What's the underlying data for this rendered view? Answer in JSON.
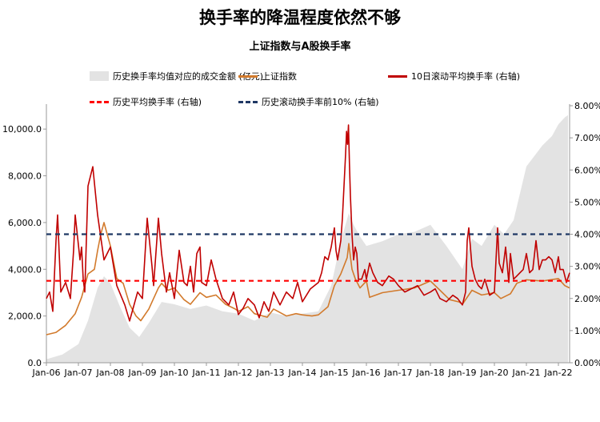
{
  "title": "换手率的降温程度依然不够",
  "colors": {
    "area": "#e3e3e3",
    "index": "#d27a2c",
    "turnover": "#c00000",
    "avg": "#ff0000",
    "p10": "#1f3864"
  },
  "chart_data": {
    "type": "line",
    "title": "上证指数与A股换手率",
    "x_tick_labels": [
      "Jan-06",
      "Jan-07",
      "Jan-08",
      "Jan-09",
      "Jan-10",
      "Jan-11",
      "Jan-12",
      "Jan-13",
      "Jan-14",
      "Jan-15",
      "Jan-16",
      "Jan-17",
      "Jan-18",
      "Jan-19",
      "Jan-20",
      "Jan-21",
      "Jan-22"
    ],
    "x_range": [
      2006.0,
      2022.35
    ],
    "y_left": {
      "range": [
        0,
        11000
      ],
      "ticks": [
        0,
        2000,
        4000,
        6000,
        8000,
        10000
      ],
      "tick_labels": [
        "0.0",
        "2,000.0",
        "4,000.0",
        "6,000.0",
        "8,000.0",
        "10,000.0"
      ]
    },
    "y_right": {
      "range": [
        0,
        8
      ],
      "ticks": [
        0,
        1,
        2,
        3,
        4,
        5,
        6,
        7,
        8
      ],
      "tick_labels": [
        "0.00%",
        "1.00%",
        "2.00%",
        "3.00%",
        "4.00%",
        "5.00%",
        "6.00%",
        "7.00%",
        "8.00%"
      ]
    },
    "legend": {
      "area": "历史换手率均值对应的成交金额 (亿元)",
      "index": "上证指数",
      "turnover": "10日滚动平均换手率 (右轴)",
      "avg": "历史平均换手率 (右轴)",
      "p10": "历史滚动换手率前10% (右轴)"
    },
    "series": [
      {
        "name": "历史换手率均值对应的成交金额 (亿元)",
        "axis": "left",
        "kind": "area",
        "x": [
          2006.0,
          2006.5,
          2007.0,
          2007.3,
          2007.6,
          2007.8,
          2008.0,
          2008.3,
          2008.6,
          2008.9,
          2009.2,
          2009.6,
          2010.0,
          2010.5,
          2011.0,
          2011.5,
          2012.0,
          2012.5,
          2013.0,
          2013.5,
          2014.0,
          2014.5,
          2014.9,
          2015.2,
          2015.45,
          2015.6,
          2015.8,
          2016.0,
          2016.5,
          2017.0,
          2017.5,
          2018.0,
          2018.5,
          2019.0,
          2019.3,
          2019.6,
          2020.0,
          2020.3,
          2020.6,
          2021.0,
          2021.5,
          2021.8,
          2022.0,
          2022.2,
          2022.3
        ],
        "values": [
          150,
          350,
          800,
          1800,
          3200,
          3700,
          3400,
          2400,
          1500,
          1100,
          1700,
          2600,
          2500,
          2300,
          2450,
          2200,
          2100,
          1800,
          2150,
          2000,
          2100,
          2200,
          3300,
          5200,
          6400,
          5900,
          5400,
          5000,
          5200,
          5500,
          5600,
          5900,
          5000,
          4000,
          5300,
          5000,
          5900,
          5500,
          6100,
          8400,
          9300,
          9700,
          10200,
          10500,
          10600
        ]
      },
      {
        "name": "上证指数",
        "axis": "left",
        "kind": "line",
        "x": [
          2006.0,
          2006.3,
          2006.6,
          2006.9,
          2007.1,
          2007.3,
          2007.5,
          2007.6,
          2007.7,
          2007.8,
          2008.0,
          2008.2,
          2008.4,
          2008.6,
          2008.8,
          2008.95,
          2009.2,
          2009.5,
          2009.6,
          2009.8,
          2010.0,
          2010.3,
          2010.5,
          2010.8,
          2010.9,
          2011.0,
          2011.3,
          2011.6,
          2011.9,
          2012.0,
          2012.3,
          2012.5,
          2012.9,
          2013.1,
          2013.5,
          2013.8,
          2014.0,
          2014.3,
          2014.5,
          2014.8,
          2015.0,
          2015.2,
          2015.4,
          2015.45,
          2015.55,
          2015.65,
          2015.8,
          2016.0,
          2016.1,
          2016.5,
          2017.0,
          2017.5,
          2018.0,
          2018.3,
          2018.6,
          2018.9,
          2019.0,
          2019.3,
          2019.6,
          2020.0,
          2020.2,
          2020.5,
          2020.7,
          2021.0,
          2021.5,
          2022.0,
          2022.2,
          2022.35
        ],
        "values": [
          1200,
          1300,
          1600,
          2100,
          2800,
          3800,
          4000,
          4800,
          5500,
          6000,
          5000,
          3600,
          3400,
          2500,
          2000,
          1800,
          2300,
          3200,
          3400,
          3100,
          3200,
          2700,
          2500,
          3000,
          2900,
          2800,
          2900,
          2500,
          2300,
          2200,
          2400,
          2100,
          1950,
          2300,
          2000,
          2100,
          2050,
          2000,
          2050,
          2400,
          3300,
          3800,
          4500,
          5100,
          4000,
          3600,
          3200,
          3500,
          2800,
          3000,
          3100,
          3200,
          3500,
          3100,
          2700,
          2600,
          2500,
          3100,
          2900,
          3000,
          2750,
          2950,
          3400,
          3550,
          3500,
          3600,
          3300,
          3200
        ]
      },
      {
        "name": "10日滚动平均换手率 (右轴)",
        "axis": "right",
        "kind": "line",
        "x": [
          2006.0,
          2006.1,
          2006.2,
          2006.3,
          2006.35,
          2006.45,
          2006.6,
          2006.75,
          2006.85,
          2006.9,
          2007.05,
          2007.1,
          2007.15,
          2007.2,
          2007.3,
          2007.45,
          2007.6,
          2007.8,
          2008.0,
          2008.2,
          2008.45,
          2008.6,
          2008.85,
          2009.0,
          2009.15,
          2009.3,
          2009.35,
          2009.5,
          2009.6,
          2009.75,
          2009.85,
          2010.0,
          2010.15,
          2010.3,
          2010.4,
          2010.5,
          2010.6,
          2010.7,
          2010.8,
          2010.85,
          2011.0,
          2011.15,
          2011.3,
          2011.5,
          2011.7,
          2011.85,
          2012.0,
          2012.15,
          2012.3,
          2012.5,
          2012.65,
          2012.8,
          2012.95,
          2013.1,
          2013.3,
          2013.5,
          2013.7,
          2013.85,
          2014.0,
          2014.25,
          2014.5,
          2014.6,
          2014.7,
          2014.8,
          2014.9,
          2015.0,
          2015.05,
          2015.1,
          2015.2,
          2015.25,
          2015.3,
          2015.35,
          2015.38,
          2015.41,
          2015.44,
          2015.47,
          2015.5,
          2015.55,
          2015.6,
          2015.65,
          2015.7,
          2015.75,
          2015.85,
          2015.95,
          2016.0,
          2016.1,
          2016.2,
          2016.35,
          2016.5,
          2016.7,
          2016.85,
          2017.0,
          2017.2,
          2017.4,
          2017.6,
          2017.8,
          2018.0,
          2018.15,
          2018.3,
          2018.5,
          2018.7,
          2018.85,
          2019.0,
          2019.1,
          2019.15,
          2019.2,
          2019.3,
          2019.4,
          2019.5,
          2019.6,
          2019.7,
          2019.85,
          2020.0,
          2020.1,
          2020.15,
          2020.25,
          2020.35,
          2020.45,
          2020.5,
          2020.6,
          2020.7,
          2020.8,
          2020.9,
          2021.0,
          2021.1,
          2021.2,
          2021.3,
          2021.4,
          2021.5,
          2021.6,
          2021.7,
          2021.8,
          2021.9,
          2022.0,
          2022.05,
          2022.15,
          2022.25,
          2022.35
        ],
        "values": [
          2.0,
          2.2,
          1.6,
          3.8,
          4.6,
          2.2,
          2.5,
          2.0,
          3.5,
          4.6,
          3.2,
          3.6,
          2.6,
          2.2,
          5.5,
          6.1,
          4.6,
          3.2,
          3.6,
          2.4,
          1.8,
          1.3,
          2.2,
          2.0,
          4.5,
          3.0,
          2.4,
          4.5,
          3.4,
          2.2,
          2.8,
          2.0,
          3.5,
          2.5,
          2.4,
          3.0,
          2.2,
          3.4,
          3.6,
          2.5,
          2.4,
          3.2,
          2.6,
          2.0,
          1.8,
          2.2,
          1.5,
          1.7,
          2.0,
          1.8,
          1.4,
          1.9,
          1.6,
          2.2,
          1.8,
          2.2,
          2.0,
          2.5,
          1.9,
          2.3,
          2.5,
          2.8,
          3.3,
          3.2,
          3.6,
          4.2,
          3.5,
          3.2,
          3.8,
          4.5,
          5.5,
          6.5,
          7.2,
          6.8,
          7.4,
          6.2,
          5.2,
          4.0,
          3.2,
          3.6,
          3.4,
          2.6,
          2.6,
          2.9,
          2.6,
          3.1,
          2.8,
          2.5,
          2.4,
          2.7,
          2.6,
          2.4,
          2.2,
          2.3,
          2.4,
          2.1,
          2.2,
          2.3,
          2.0,
          1.9,
          2.1,
          2.0,
          1.8,
          2.2,
          3.8,
          4.2,
          3.0,
          2.6,
          2.4,
          2.3,
          2.6,
          2.1,
          2.2,
          4.2,
          3.1,
          2.8,
          3.6,
          2.5,
          3.4,
          2.6,
          2.7,
          2.8,
          2.9,
          3.4,
          2.8,
          2.9,
          3.8,
          2.9,
          3.2,
          3.2,
          3.3,
          3.2,
          2.8,
          3.3,
          2.9,
          2.9,
          2.5,
          2.8
        ]
      },
      {
        "name": "历史平均换手率 (右轴)",
        "axis": "right",
        "kind": "hline",
        "value": 2.55
      },
      {
        "name": "历史滚动换手率前10% (右轴)",
        "axis": "right",
        "kind": "hline",
        "value": 4.0
      }
    ]
  }
}
